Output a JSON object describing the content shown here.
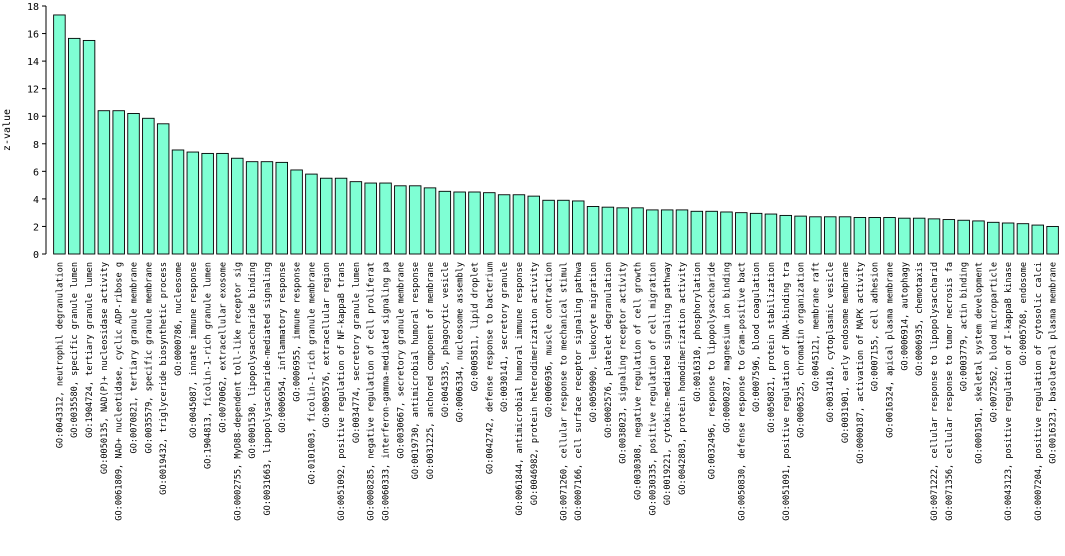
{
  "chart_data": {
    "type": "bar",
    "ylabel": "z-value",
    "xlabel": "",
    "ylim": [
      0,
      18
    ],
    "yticks": [
      0,
      2,
      4,
      6,
      8,
      10,
      12,
      14,
      16,
      18
    ],
    "bar_color": "#7FFFD4",
    "bar_stroke": "#000000",
    "grid": false,
    "categories": [
      "GO:0043312, neutrophil degranulation",
      "GO:0035580, specific granule lumen",
      "GO:1904724, tertiary granule lumen",
      "GO:0050135, NAD(P)+ nucleosidase activity",
      "GO:0061809, NAD+ nucleotidase, cyclic ADP-ribose g",
      "GO:0070821, tertiary granule membrane",
      "GO:0035579, specific granule membrane",
      "GO:0019432, triglyceride biosynthetic process",
      "GO:0000786, nucleosome",
      "GO:0045087, innate immune response",
      "GO:1904813, ficolin-1-rich granule lumen",
      "GO:0070062, extracellular exosome",
      "GO:0002755, MyD88-dependent toll-like receptor sig",
      "GO:0001530, lipopolysaccharide binding",
      "GO:0031663, lipopolysaccharide-mediated signaling",
      "GO:0006954, inflammatory response",
      "GO:0006955, immune response",
      "GO:0101003, ficolin-1-rich granule membrane",
      "GO:0005576, extracellular region",
      "GO:0051092, positive regulation of NF-kappaB trans",
      "GO:0034774, secretory granule lumen",
      "GO:0008285, negative regulation of cell proliferat",
      "GO:0060333, interferon-gamma-mediated signaling pa",
      "GO:0030667, secretory granule membrane",
      "GO:0019730, antimicrobial humoral response",
      "GO:0031225, anchored component of membrane",
      "GO:0045335, phagocytic vesicle",
      "GO:0006334, nucleosome assembly",
      "GO:0005811, lipid droplet",
      "GO:0042742, defense response to bacterium",
      "GO:0030141, secretory granule",
      "GO:0061844, antimicrobial humoral immune response",
      "GO:0046982, protein heterodimerization activity",
      "GO:0006936, muscle contraction",
      "GO:0071260, cellular response to mechanical stimul",
      "GO:0007166, cell surface receptor signaling pathwa",
      "GO:0050900, leukocyte migration",
      "GO:0002576, platelet degranulation",
      "GO:0038023, signaling receptor activity",
      "GO:0030308, negative regulation of cell growth",
      "GO:0030335, positive regulation of cell migration",
      "GO:0019221, cytokine-mediated signaling pathway",
      "GO:0042803, protein homodimerization activity",
      "GO:0016310, phosphorylation",
      "GO:0032496, response to lipopolysaccharide",
      "GO:0000287, magnesium ion binding",
      "GO:0050830, defense response to Gram-positive bact",
      "GO:0007596, blood coagulation",
      "GO:0050821, protein stabilization",
      "GO:0051091, positive regulation of DNA-binding tra",
      "GO:0006325, chromatin organization",
      "GO:0045121, membrane raft",
      "GO:0031410, cytoplasmic vesicle",
      "GO:0031901, early endosome membrane",
      "GO:0000187, activation of MAPK activity",
      "GO:0007155, cell adhesion",
      "GO:0016324, apical plasma membrane",
      "GO:0006914, autophagy",
      "GO:0006935, chemotaxis",
      "GO:0071222, cellular response to lipopolysaccharid",
      "GO:0071356, cellular response to tumor necrosis fa",
      "GO:0003779, actin binding",
      "GO:0001501, skeletal system development",
      "GO:0072562, blood microparticle",
      "GO:0043123, positive regulation of I-kappaB kinase",
      "GO:0005768, endosome",
      "GO:0007204, positive regulation of cytosolic calci",
      "GO:0016323, basolateral plasma membrane"
    ],
    "values": [
      17.35,
      15.65,
      15.5,
      10.4,
      10.4,
      10.2,
      9.85,
      9.45,
      7.55,
      7.4,
      7.3,
      7.3,
      6.95,
      6.7,
      6.7,
      6.65,
      6.1,
      5.8,
      5.5,
      5.5,
      5.25,
      5.15,
      5.15,
      4.95,
      4.95,
      4.8,
      4.55,
      4.5,
      4.5,
      4.45,
      4.3,
      4.3,
      4.2,
      3.9,
      3.9,
      3.85,
      3.45,
      3.4,
      3.35,
      3.35,
      3.2,
      3.2,
      3.2,
      3.1,
      3.1,
      3.05,
      3.0,
      2.95,
      2.9,
      2.8,
      2.75,
      2.7,
      2.7,
      2.7,
      2.65,
      2.65,
      2.65,
      2.6,
      2.6,
      2.55,
      2.5,
      2.45,
      2.4,
      2.3,
      2.25,
      2.2,
      2.1,
      2.0
    ]
  }
}
